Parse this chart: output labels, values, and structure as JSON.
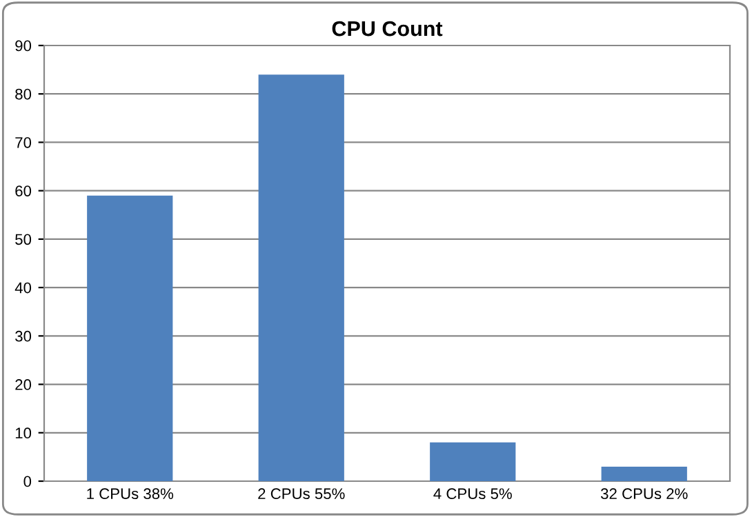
{
  "chart_data": {
    "type": "bar",
    "title": "CPU Count",
    "categories": [
      "1 CPUs 38%",
      "2 CPUs 55%",
      "4 CPUs 5%",
      "32 CPUs 2%"
    ],
    "values": [
      59,
      84,
      8,
      3
    ],
    "color": "#4f81bd",
    "ylim": [
      0,
      90
    ],
    "yticks": [
      0,
      10,
      20,
      30,
      40,
      50,
      60,
      70,
      80,
      90
    ],
    "grid": "y"
  }
}
